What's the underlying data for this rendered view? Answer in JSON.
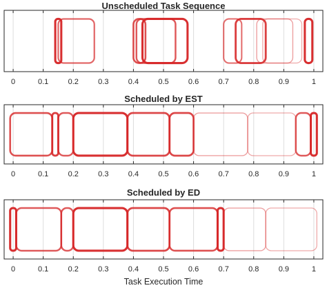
{
  "chart_data": {
    "type": "timeline",
    "xlabel": "Task Execution Time",
    "xlim": [
      -0.03,
      1.03
    ],
    "xticks": [
      0,
      0.1,
      0.2,
      0.3,
      0.4,
      0.5,
      0.6,
      0.7,
      0.8,
      0.9,
      1
    ],
    "tick_labels": [
      "0",
      "0.1",
      "0.2",
      "0.3",
      "0.4",
      "0.5",
      "0.6",
      "0.7",
      "0.8",
      "0.9",
      "1"
    ],
    "grid": "x",
    "color": "#d62728",
    "panels": [
      {
        "title": "Unscheduled Task Sequence",
        "tasks": [
          {
            "start": 0.14,
            "end": 0.16,
            "intensity": 0.95
          },
          {
            "start": 0.15,
            "end": 0.27,
            "intensity": 0.6
          },
          {
            "start": 0.4,
            "end": 0.44,
            "intensity": 0.75
          },
          {
            "start": 0.41,
            "end": 0.54,
            "intensity": 0.7
          },
          {
            "start": 0.43,
            "end": 0.58,
            "intensity": 0.95
          },
          {
            "start": 0.7,
            "end": 0.76,
            "intensity": 0.55
          },
          {
            "start": 0.74,
            "end": 0.84,
            "intensity": 0.85
          },
          {
            "start": 0.81,
            "end": 0.93,
            "intensity": 0.25
          },
          {
            "start": 0.83,
            "end": 0.96,
            "intensity": 0.2
          },
          {
            "start": 0.97,
            "end": 0.995,
            "intensity": 0.95
          }
        ]
      },
      {
        "title": "Scheduled by EST",
        "tasks": [
          {
            "start": -0.01,
            "end": 0.13,
            "intensity": 0.75
          },
          {
            "start": 0.13,
            "end": 0.15,
            "intensity": 0.85
          },
          {
            "start": 0.15,
            "end": 0.2,
            "intensity": 0.7
          },
          {
            "start": 0.2,
            "end": 0.38,
            "intensity": 0.95
          },
          {
            "start": 0.38,
            "end": 0.52,
            "intensity": 0.8
          },
          {
            "start": 0.52,
            "end": 0.6,
            "intensity": 0.8
          },
          {
            "start": 0.6,
            "end": 0.78,
            "intensity": 0.25
          },
          {
            "start": 0.78,
            "end": 0.94,
            "intensity": 0.2
          },
          {
            "start": 0.94,
            "end": 0.99,
            "intensity": 0.7
          },
          {
            "start": 0.99,
            "end": 1.01,
            "intensity": 0.95
          }
        ]
      },
      {
        "title": "Scheduled by ED",
        "tasks": [
          {
            "start": -0.01,
            "end": 0.01,
            "intensity": 0.95
          },
          {
            "start": 0.01,
            "end": 0.16,
            "intensity": 0.7
          },
          {
            "start": 0.16,
            "end": 0.2,
            "intensity": 0.7
          },
          {
            "start": 0.2,
            "end": 0.38,
            "intensity": 0.95
          },
          {
            "start": 0.38,
            "end": 0.52,
            "intensity": 0.8
          },
          {
            "start": 0.52,
            "end": 0.68,
            "intensity": 0.75
          },
          {
            "start": 0.68,
            "end": 0.7,
            "intensity": 0.95
          },
          {
            "start": 0.7,
            "end": 0.84,
            "intensity": 0.25
          },
          {
            "start": 0.84,
            "end": 1.01,
            "intensity": 0.2
          }
        ]
      }
    ]
  }
}
